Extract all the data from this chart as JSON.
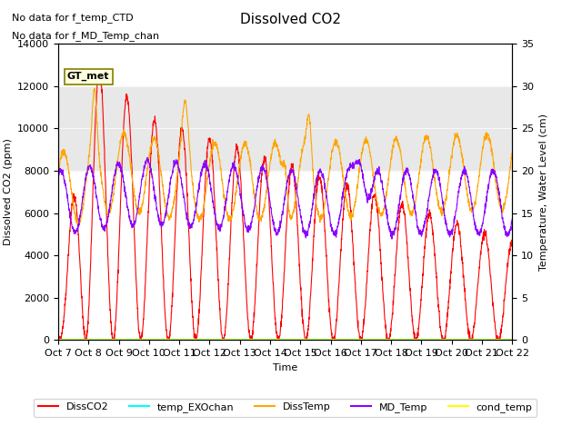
{
  "title": "Dissolved CO2",
  "xlabel": "Time",
  "ylabel_left": "Dissolved CO2 (ppm)",
  "ylabel_right": "Temperature, Water Level (cm)",
  "annotation_lines": [
    "No data for f_temp_CTD",
    "No data for f_MD_Temp_chan"
  ],
  "gt_met_label": "GT_met",
  "ylim_left": [
    0,
    14000
  ],
  "ylim_right": [
    0,
    35
  ],
  "xtick_labels": [
    "Oct 7",
    "Oct 8",
    "Oct 9",
    "Oct 10",
    "Oct 11",
    "Oct 12",
    "Oct 13",
    "Oct 14",
    "Oct 15",
    "Oct 16",
    "Oct 17",
    "Oct 18",
    "Oct 19",
    "Oct 20",
    "Oct 21",
    "Oct 22"
  ],
  "colors": {
    "DissCO2": "#FF0000",
    "temp_EXOchan": "#00FFFF",
    "DissTemp": "#FFA500",
    "MD_Temp": "#8B00FF",
    "cond_temp": "#FFFF00"
  },
  "legend_entries": [
    "DissCO2",
    "temp_EXOchan",
    "DissTemp",
    "MD_Temp",
    "cond_temp"
  ],
  "bg_band_ylim": [
    8000,
    12000
  ],
  "bg_band_color": "#E8E8E8"
}
